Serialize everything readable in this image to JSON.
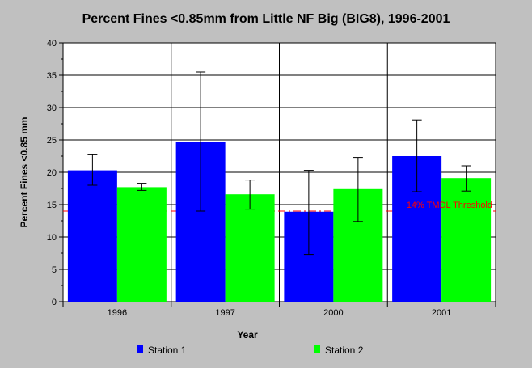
{
  "chart_data": {
    "type": "bar",
    "title": "Percent Fines <0.85mm from Little NF Big (BIG8), 1996-2001",
    "xlabel": "Year",
    "ylabel": "Percent Fines <0.85 mm",
    "categories": [
      "1996",
      "1997",
      "2000",
      "2001"
    ],
    "ylim": [
      0,
      40
    ],
    "yticks": [
      0,
      5,
      10,
      15,
      20,
      25,
      30,
      35,
      40
    ],
    "grid": true,
    "legend_position": "bottom",
    "series": [
      {
        "name": "Station 1",
        "color": "#0000ff",
        "values": [
          20.3,
          24.7,
          13.9,
          22.5
        ],
        "error_low": [
          18.0,
          14.0,
          7.3,
          17.0
        ],
        "error_high": [
          22.7,
          35.5,
          20.3,
          28.1
        ]
      },
      {
        "name": "Station 2",
        "color": "#00ff00",
        "values": [
          17.7,
          16.6,
          17.4,
          19.1
        ],
        "error_low": [
          17.2,
          14.3,
          12.4,
          17.1
        ],
        "error_high": [
          18.3,
          18.8,
          22.3,
          21.0
        ]
      }
    ],
    "threshold": {
      "value": 14,
      "label": "14% TMDL Threshold",
      "color": "#ff0000"
    }
  }
}
